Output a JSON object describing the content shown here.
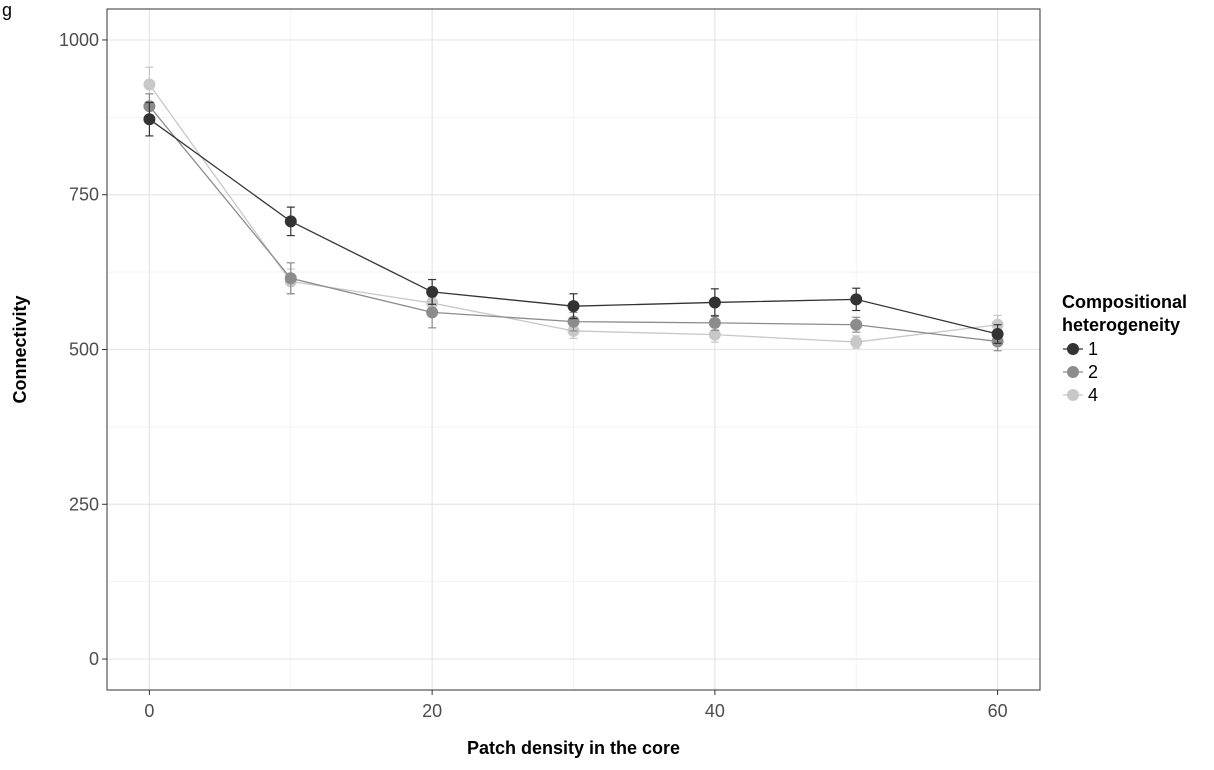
{
  "chart_data": {
    "type": "line",
    "panel_label": "g",
    "title": "",
    "xlabel": "Patch density in the core",
    "ylabel": "Connectivity",
    "xlim": [
      -3,
      63
    ],
    "ylim": [
      -50,
      1050
    ],
    "x_ticks": [
      0,
      20,
      40,
      60
    ],
    "y_ticks": [
      0,
      250,
      500,
      750,
      1000
    ],
    "x_minor_ticks": [
      10,
      30,
      50
    ],
    "y_minor_ticks": [
      125,
      375,
      625,
      875
    ],
    "grid": true,
    "legend": {
      "title": "Compositional heterogeneity",
      "title_lines": [
        "Compositional",
        "heterogeneity"
      ],
      "position": "right"
    },
    "x": [
      0,
      10,
      20,
      30,
      40,
      50,
      60
    ],
    "series": [
      {
        "name": "1",
        "color": "#333333",
        "values": [
          872,
          707,
          593,
          570,
          576,
          581,
          525
        ],
        "errors": [
          27,
          23,
          20,
          20,
          22,
          18,
          15
        ]
      },
      {
        "name": "2",
        "color": "#8c8c8c",
        "values": [
          893,
          615,
          560,
          545,
          543,
          540,
          513
        ],
        "errors": [
          20,
          25,
          25,
          15,
          12,
          12,
          15
        ]
      },
      {
        "name": "4",
        "color": "#c8c8c8",
        "values": [
          928,
          610,
          575,
          530,
          524,
          512,
          540
        ],
        "errors": [
          28,
          20,
          15,
          12,
          12,
          10,
          15
        ]
      }
    ]
  }
}
